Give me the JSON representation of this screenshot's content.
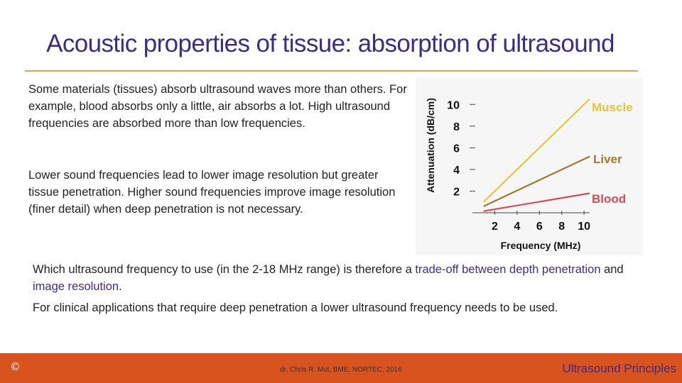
{
  "slide": {
    "title": "Acoustic properties of tissue: absorption of ultrasound",
    "para1": "Some materials (tissues) absorb ultrasound waves more than others. For example, blood absorbs only a little, air absorbs a lot. High ultrasound frequencies are absorbed more than low frequencies.",
    "para2": "Lower sound frequencies lead to lower image resolution but greater tissue penetration. Higher sound frequencies improve image resolution (finer detail) when deep penetration is not necessary.",
    "para3_a": "Which ultrasound frequency to use (in the 2-18 MHz range) is therefore a ",
    "para3_b": "trade-off between depth penetration",
    "para3_c": " and ",
    "para3_d": "image resolution",
    "para3_e": ".",
    "para4": "For clinical applications that require deep penetration a lower ultrasound frequency needs to be  used."
  },
  "footer": {
    "copyright": "©",
    "author": "dr. Chris R. Mol, BME, NORTEC, 2016",
    "course": "Ultrasound Principles"
  },
  "colors": {
    "title": "#3d2c85",
    "footer_bg": "#d9531e",
    "muscle": "#e8c43a",
    "liver": "#a07a2a",
    "blood": "#d94a55"
  },
  "chart_data": {
    "type": "line",
    "xlabel": "Frequency (MHz)",
    "ylabel": "Attenuation (dB/cm)",
    "x_ticks": [
      2,
      4,
      6,
      8,
      10
    ],
    "y_ticks": [
      2,
      4,
      6,
      8,
      10
    ],
    "xlim": [
      0,
      10.5
    ],
    "ylim": [
      0,
      11
    ],
    "series": [
      {
        "name": "Muscle",
        "x": [
          1,
          10.5
        ],
        "y": [
          1,
          10.5
        ],
        "color": "#e8c43a"
      },
      {
        "name": "Liver",
        "x": [
          1,
          10.5
        ],
        "y": [
          0.6,
          5.2
        ],
        "color": "#a07a2a"
      },
      {
        "name": "Blood",
        "x": [
          1,
          10.5
        ],
        "y": [
          0.15,
          1.8
        ],
        "color": "#d94a55"
      }
    ]
  }
}
